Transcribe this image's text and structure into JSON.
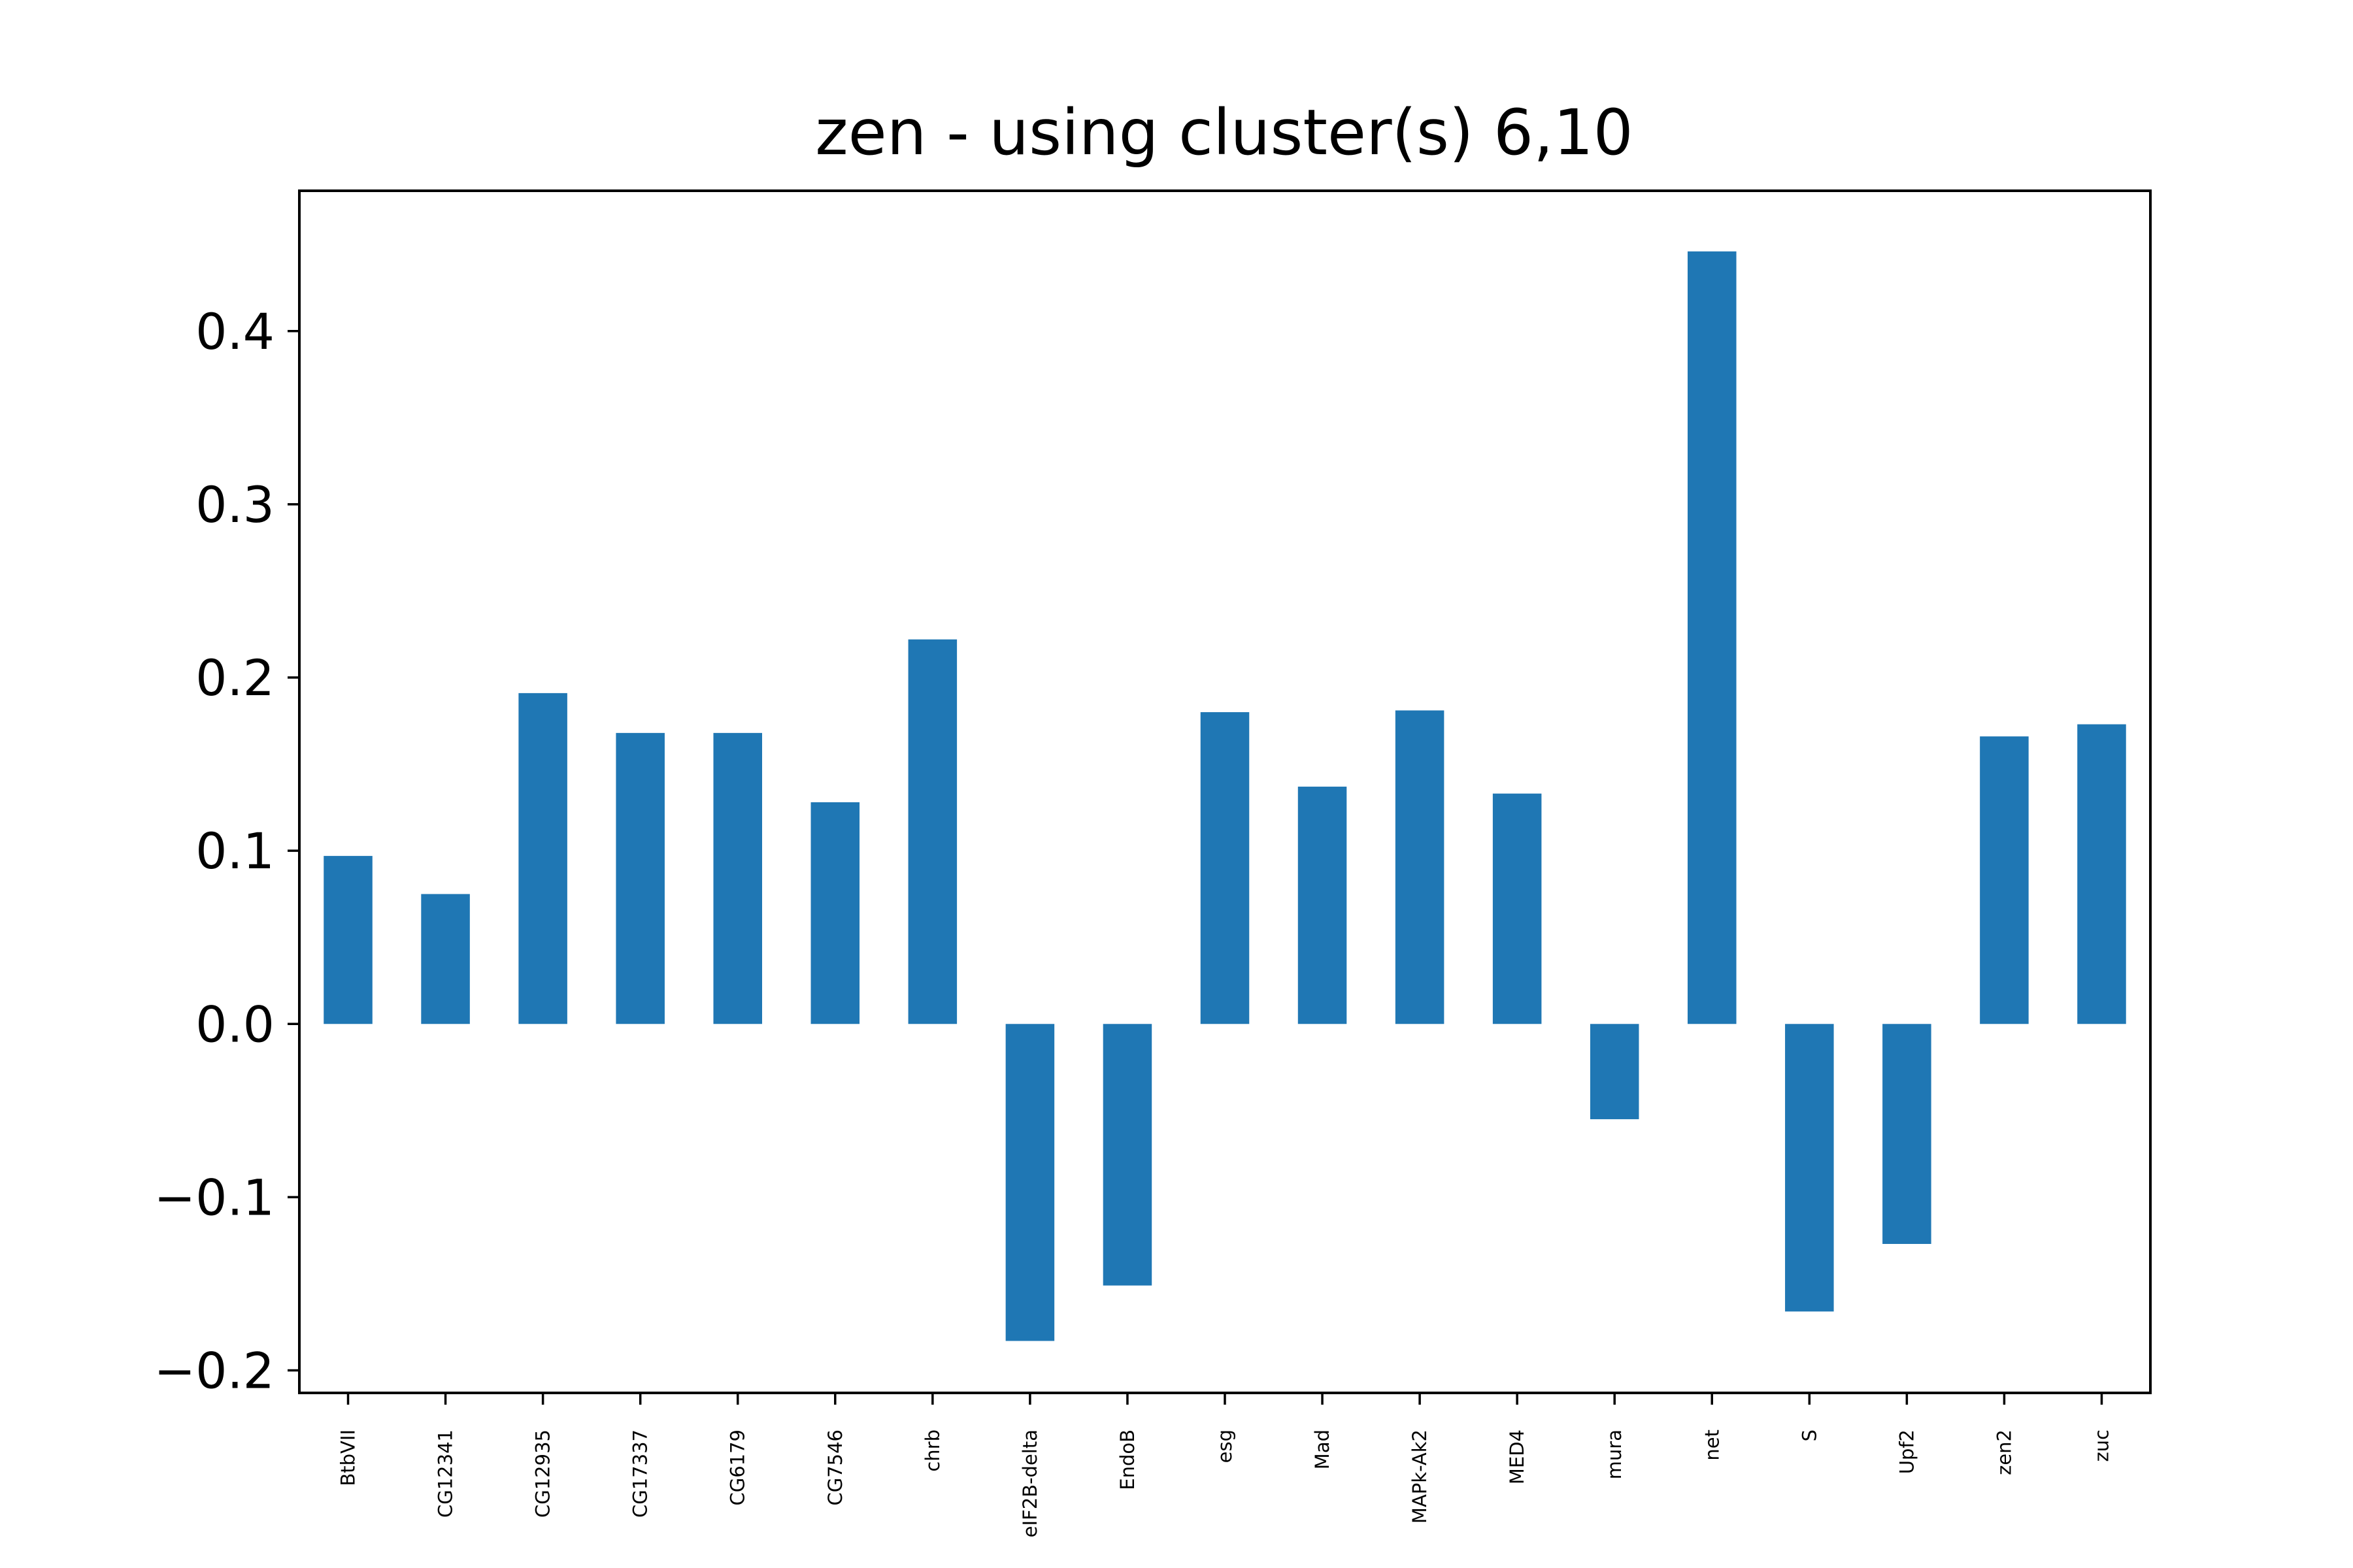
{
  "chart_data": {
    "type": "bar",
    "title": "zen - using cluster(s) 6,10",
    "xlabel": "",
    "ylabel": "",
    "categories": [
      "BtbVII",
      "CG12341",
      "CG12935",
      "CG17337",
      "CG6179",
      "CG7546",
      "chrb",
      "eIF2B-delta",
      "EndoB",
      "esg",
      "Mad",
      "MAPk-Ak2",
      "MED4",
      "mura",
      "net",
      "S",
      "Upf2",
      "zen2",
      "zuc"
    ],
    "values": [
      0.097,
      0.075,
      0.191,
      0.168,
      0.168,
      0.128,
      0.222,
      -0.183,
      -0.151,
      0.18,
      0.137,
      0.181,
      0.133,
      -0.055,
      0.446,
      -0.166,
      -0.127,
      0.166,
      0.173
    ],
    "ylim": [
      -0.213,
      0.481
    ],
    "yticks": [
      -0.2,
      -0.1,
      0.0,
      0.1,
      0.2,
      0.3,
      0.4
    ],
    "ytick_labels": [
      "−0.2",
      "−0.1",
      "0.0",
      "0.1",
      "0.2",
      "0.3",
      "0.4"
    ],
    "bar_color": "#1f77b4",
    "grid": false,
    "legend": false
  }
}
